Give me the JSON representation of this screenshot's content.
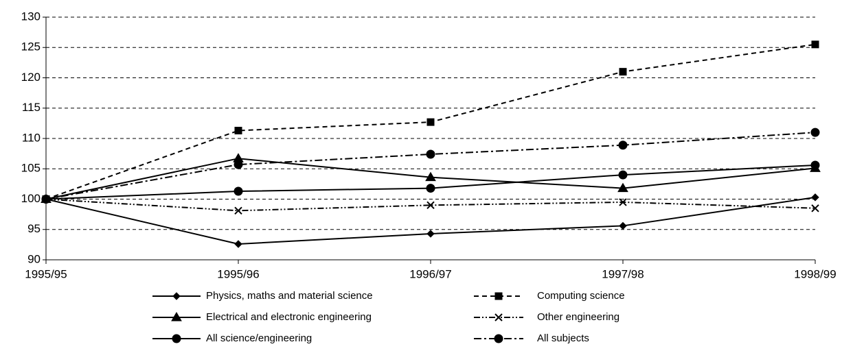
{
  "chart_data": {
    "type": "line",
    "categories": [
      "1995/95",
      "1995/96",
      "1996/97",
      "1997/98",
      "1998/99"
    ],
    "series": [
      {
        "name": "Physics, maths and material science",
        "color": "#000000",
        "dash": "solid",
        "marker": "diamond",
        "values": [
          100,
          92.6,
          94.3,
          95.6,
          100.3
        ]
      },
      {
        "name": "Computing science",
        "color": "#000000",
        "dash": "dashed",
        "marker": "square",
        "values": [
          100,
          111.3,
          112.7,
          121,
          125.5
        ]
      },
      {
        "name": "Electrical and electronic engineering",
        "color": "#000000",
        "dash": "solid",
        "marker": "triangle",
        "values": [
          100,
          106.7,
          103.6,
          101.8,
          105.1
        ]
      },
      {
        "name": "Other engineering",
        "color": "#000000",
        "dash": "dashdotdot",
        "marker": "x",
        "values": [
          100,
          98.1,
          99,
          99.5,
          98.5
        ]
      },
      {
        "name": "All science/engineering",
        "color": "#000000",
        "dash": "solid",
        "marker": "circle",
        "values": [
          100,
          101.3,
          101.8,
          104,
          105.6
        ]
      },
      {
        "name": "All subjects",
        "color": "#000000",
        "dash": "dashdot",
        "marker": "circle",
        "values": [
          100,
          105.7,
          107.4,
          108.9,
          111
        ]
      }
    ],
    "ylim": [
      90,
      130
    ],
    "yticks": [
      90,
      95,
      100,
      105,
      110,
      115,
      120,
      125,
      130
    ],
    "grid": true,
    "legend": "bottom"
  }
}
